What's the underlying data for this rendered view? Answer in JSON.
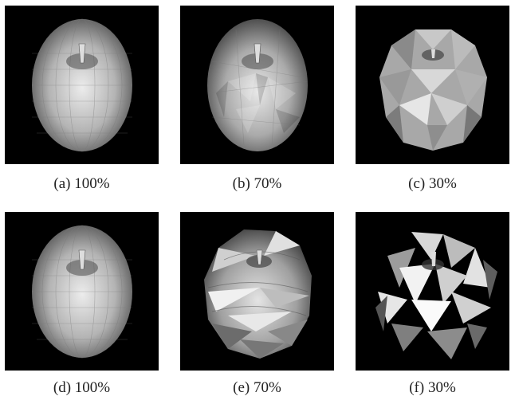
{
  "figure": {
    "panels": [
      {
        "caption": "(a)  100%"
      },
      {
        "caption": "(b)  70%"
      },
      {
        "caption": "(c)  30%"
      },
      {
        "caption": "(d)  100%"
      },
      {
        "caption": "(e)  70%"
      },
      {
        "caption": "(f)  30%"
      }
    ]
  }
}
